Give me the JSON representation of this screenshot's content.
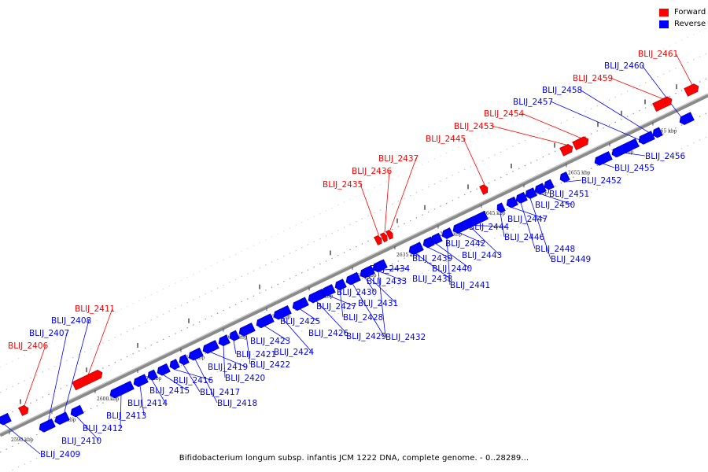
{
  "legend": {
    "forward_label": "Forward",
    "reverse_label": "Reverse",
    "forward_color": "#ff0000",
    "reverse_color": "#0000ff"
  },
  "caption": "Bifidobacterium longum subsp. infantis JCM 1222 DNA, complete genome. - 0..28289...",
  "scale_ticks": [
    "2590 kbp",
    "2595 kbp",
    "2600 kbp",
    "2605 kbp",
    "2610 kbp",
    "2615 kbp",
    "2620 kbp",
    "2625 kbp",
    "2630 kbp",
    "2635 kbp",
    "2640 kbp",
    "2645 kbp",
    "2650 kbp",
    "2655 kbp",
    "2660 kbp",
    "2665 kbp"
  ],
  "genes": [
    {
      "name": "BLIJ_2406",
      "strand": "forward"
    },
    {
      "name": "BLIJ_2407",
      "strand": "reverse"
    },
    {
      "name": "BLIJ_2408",
      "strand": "reverse"
    },
    {
      "name": "BLIJ_2409",
      "strand": "reverse"
    },
    {
      "name": "BLIJ_2410",
      "strand": "reverse"
    },
    {
      "name": "BLIJ_2411",
      "strand": "forward"
    },
    {
      "name": "BLIJ_2412",
      "strand": "reverse"
    },
    {
      "name": "BLIJ_2413",
      "strand": "reverse"
    },
    {
      "name": "BLIJ_2414",
      "strand": "reverse"
    },
    {
      "name": "BLIJ_2415",
      "strand": "reverse"
    },
    {
      "name": "BLIJ_2416",
      "strand": "reverse"
    },
    {
      "name": "BLIJ_2417",
      "strand": "reverse"
    },
    {
      "name": "BLIJ_2418",
      "strand": "reverse"
    },
    {
      "name": "BLIJ_2419",
      "strand": "reverse"
    },
    {
      "name": "BLIJ_2420",
      "strand": "reverse"
    },
    {
      "name": "BLIJ_2421",
      "strand": "reverse"
    },
    {
      "name": "BLIJ_2422",
      "strand": "reverse"
    },
    {
      "name": "BLIJ_2423",
      "strand": "reverse"
    },
    {
      "name": "BLIJ_2424",
      "strand": "reverse"
    },
    {
      "name": "BLIJ_2425",
      "strand": "reverse"
    },
    {
      "name": "BLIJ_2426",
      "strand": "reverse"
    },
    {
      "name": "BLIJ_2427",
      "strand": "reverse"
    },
    {
      "name": "BLIJ_2428",
      "strand": "reverse"
    },
    {
      "name": "BLIJ_2429",
      "strand": "reverse"
    },
    {
      "name": "BLIJ_2430",
      "strand": "reverse"
    },
    {
      "name": "BLIJ_2431",
      "strand": "reverse"
    },
    {
      "name": "BLIJ_2432",
      "strand": "reverse"
    },
    {
      "name": "BLIJ_2433",
      "strand": "reverse"
    },
    {
      "name": "BLIJ_2434",
      "strand": "reverse"
    },
    {
      "name": "BLIJ_2435",
      "strand": "forward"
    },
    {
      "name": "BLIJ_2436",
      "strand": "forward"
    },
    {
      "name": "BLIJ_2437",
      "strand": "forward"
    },
    {
      "name": "BLIJ_2438",
      "strand": "reverse"
    },
    {
      "name": "BLIJ_2439",
      "strand": "reverse"
    },
    {
      "name": "BLIJ_2440",
      "strand": "reverse"
    },
    {
      "name": "BLIJ_2441",
      "strand": "reverse"
    },
    {
      "name": "BLIJ_2442",
      "strand": "reverse"
    },
    {
      "name": "BLIJ_2443",
      "strand": "reverse"
    },
    {
      "name": "BLIJ_2444",
      "strand": "reverse"
    },
    {
      "name": "BLIJ_2445",
      "strand": "forward"
    },
    {
      "name": "BLIJ_2446",
      "strand": "reverse"
    },
    {
      "name": "BLIJ_2447",
      "strand": "reverse"
    },
    {
      "name": "BLIJ_2448",
      "strand": "reverse"
    },
    {
      "name": "BLIJ_2449",
      "strand": "reverse"
    },
    {
      "name": "BLIJ_2450",
      "strand": "reverse"
    },
    {
      "name": "BLIJ_2451",
      "strand": "reverse"
    },
    {
      "name": "BLIJ_2452",
      "strand": "reverse"
    },
    {
      "name": "BLIJ_2453",
      "strand": "forward"
    },
    {
      "name": "BLIJ_2454",
      "strand": "forward"
    },
    {
      "name": "BLIJ_2455",
      "strand": "reverse"
    },
    {
      "name": "BLIJ_2456",
      "strand": "reverse"
    },
    {
      "name": "BLIJ_2457",
      "strand": "reverse"
    },
    {
      "name": "BLIJ_2458",
      "strand": "reverse"
    },
    {
      "name": "BLIJ_2459",
      "strand": "forward"
    },
    {
      "name": "BLIJ_2460",
      "strand": "reverse"
    },
    {
      "name": "BLIJ_2461",
      "strand": "forward"
    }
  ]
}
